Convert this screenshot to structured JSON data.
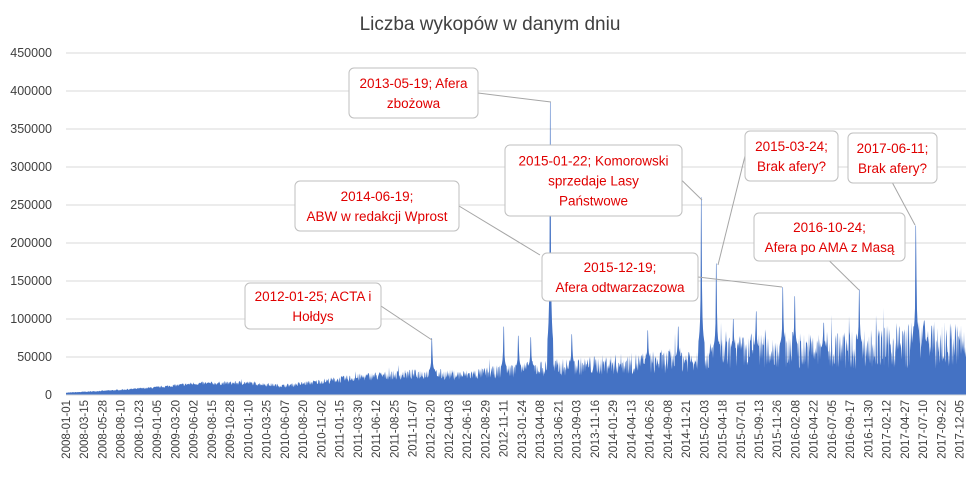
{
  "chart_data": {
    "type": "area",
    "title": "Liczba wykopów w danym dniu",
    "xlabel": "",
    "ylabel": "",
    "ylim": [
      0,
      450000
    ],
    "yticks": [
      "0",
      "50000",
      "100000",
      "150000",
      "200000",
      "250000",
      "300000",
      "350000",
      "400000",
      "450000"
    ],
    "grid": true,
    "legend": "none",
    "series_color": "#4472c4",
    "x_start": "2008-01-01",
    "x_end": "2017-12-31",
    "xticks": [
      "2008-01-01",
      "2008-03-15",
      "2008-05-28",
      "2008-08-10",
      "2008-10-23",
      "2009-01-05",
      "2009-03-20",
      "2009-06-02",
      "2009-08-15",
      "2009-10-28",
      "2010-01-10",
      "2010-03-25",
      "2010-06-07",
      "2010-08-20",
      "2010-11-02",
      "2011-01-15",
      "2011-03-30",
      "2011-06-12",
      "2011-08-25",
      "2011-11-07",
      "2012-01-20",
      "2012-04-03",
      "2012-06-16",
      "2012-08-29",
      "2012-11-11",
      "2013-01-24",
      "2013-04-08",
      "2013-06-21",
      "2013-09-03",
      "2013-11-16",
      "2014-01-29",
      "2014-04-13",
      "2014-06-26",
      "2014-09-08",
      "2014-11-21",
      "2015-02-03",
      "2015-04-18",
      "2015-07-01",
      "2015-09-13",
      "2015-11-26",
      "2016-02-08",
      "2016-04-22",
      "2016-07-05",
      "2016-09-17",
      "2016-11-30",
      "2017-02-12",
      "2017-04-27",
      "2017-07-10",
      "2017-09-22",
      "2017-12-05"
    ],
    "baseline_points": [
      {
        "x": "2008-01-01",
        "y": 3000
      },
      {
        "x": "2008-07-01",
        "y": 6000
      },
      {
        "x": "2009-01-01",
        "y": 10000
      },
      {
        "x": "2009-06-01",
        "y": 15000
      },
      {
        "x": "2010-01-01",
        "y": 16000
      },
      {
        "x": "2010-06-01",
        "y": 12000
      },
      {
        "x": "2011-01-01",
        "y": 20000
      },
      {
        "x": "2011-06-01",
        "y": 25000
      },
      {
        "x": "2012-01-01",
        "y": 28000
      },
      {
        "x": "2012-06-01",
        "y": 26000
      },
      {
        "x": "2013-01-01",
        "y": 33000
      },
      {
        "x": "2013-06-01",
        "y": 36000
      },
      {
        "x": "2014-01-01",
        "y": 40000
      },
      {
        "x": "2014-06-01",
        "y": 42000
      },
      {
        "x": "2015-01-01",
        "y": 48000
      },
      {
        "x": "2015-06-01",
        "y": 56000
      },
      {
        "x": "2016-01-01",
        "y": 60000
      },
      {
        "x": "2016-06-01",
        "y": 58000
      },
      {
        "x": "2017-01-01",
        "y": 62000
      },
      {
        "x": "2017-06-01",
        "y": 66000
      },
      {
        "x": "2017-12-31",
        "y": 65000
      }
    ],
    "spikes": [
      {
        "x": "2012-01-25",
        "y": 75000
      },
      {
        "x": "2012-11-11",
        "y": 90000
      },
      {
        "x": "2013-01-10",
        "y": 78000
      },
      {
        "x": "2013-03-01",
        "y": 76000
      },
      {
        "x": "2013-05-19",
        "y": 385000
      },
      {
        "x": "2013-08-15",
        "y": 80000
      },
      {
        "x": "2014-06-19",
        "y": 85000
      },
      {
        "x": "2014-10-20",
        "y": 90000
      },
      {
        "x": "2015-01-22",
        "y": 260000
      },
      {
        "x": "2015-03-24",
        "y": 173000
      },
      {
        "x": "2015-06-01",
        "y": 100000
      },
      {
        "x": "2015-09-01",
        "y": 110000
      },
      {
        "x": "2015-12-19",
        "y": 142000
      },
      {
        "x": "2016-02-05",
        "y": 130000
      },
      {
        "x": "2016-06-01",
        "y": 95000
      },
      {
        "x": "2016-10-24",
        "y": 139000
      },
      {
        "x": "2017-06-11",
        "y": 223000
      },
      {
        "x": "2017-07-15",
        "y": 98000
      }
    ],
    "annotations": [
      {
        "x": "2012-01-25",
        "lines": [
          "2012-01-25;  ACTA i",
          "Hołdys"
        ]
      },
      {
        "x": "2013-05-19",
        "lines": [
          "2013-05-19;  Afera",
          "zbożowa"
        ]
      },
      {
        "x": "2014-06-19",
        "lines": [
          "2014-06-19;",
          "ABW w redakcji Wprost"
        ]
      },
      {
        "x": "2015-01-22",
        "lines": [
          "2015-01-22; Komorowski",
          "sprzedaje Lasy",
          "Państwowe"
        ]
      },
      {
        "x": "2015-03-24",
        "lines": [
          "2015-03-24;",
          "Brak afery?"
        ]
      },
      {
        "x": "2015-12-19",
        "lines": [
          "2015-12-19;",
          "Afera odtwarzaczowa"
        ]
      },
      {
        "x": "2016-10-24",
        "lines": [
          "2016-10-24;",
          "Afera po AMA z Masą"
        ]
      },
      {
        "x": "2017-06-11",
        "lines": [
          "2017-06-11;",
          "Brak afery?"
        ]
      }
    ]
  }
}
